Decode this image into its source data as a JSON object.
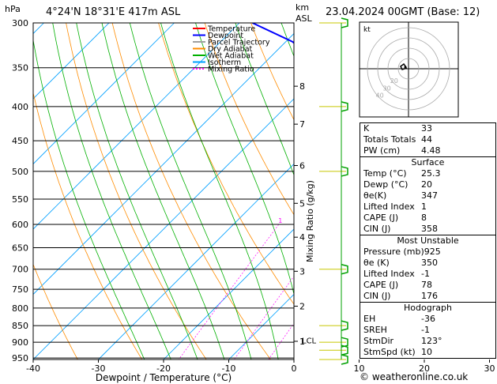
{
  "header": {
    "location": "4°24'N  18°31'E  417m  ASL",
    "datetime": "23.04.2024  00GMT  (Base: 12)",
    "hpa_label": "hPa",
    "km_label": "km",
    "asl_label": "ASL"
  },
  "legend": [
    "Temperature",
    "Dewpoint",
    "Parcel Trajectory",
    "Dry Adiabat",
    "Wet Adiabat",
    "Isotherm",
    "Mixing Ratio"
  ],
  "colors": {
    "temperature": "#ff0000",
    "dewpoint": "#0000ff",
    "parcel": "#a0a0a0",
    "dry_adiabat": "#ff8c00",
    "wet_adiabat": "#00b000",
    "isotherm": "#00a0ff",
    "mixing_ratio": "#ff00ff"
  },
  "chart_data": {
    "type": "line",
    "xlabel": "Dewpoint / Temperature (°C)",
    "ylabel_right": "Mixing Ratio (g/kg)",
    "x_ticks": [
      "-40",
      "-30",
      "-20",
      "-10",
      "0",
      "10",
      "20",
      "30"
    ],
    "pressure_levels": [
      "300",
      "350",
      "400",
      "450",
      "500",
      "550",
      "600",
      "650",
      "700",
      "750",
      "800",
      "850",
      "900",
      "950"
    ],
    "km_ticks": [
      {
        "km": "8",
        "p": 373
      },
      {
        "km": "7",
        "p": 425
      },
      {
        "km": "6",
        "p": 490
      },
      {
        "km": "5",
        "p": 558
      },
      {
        "km": "4",
        "p": 627
      },
      {
        "km": "3",
        "p": 705
      },
      {
        "km": "2",
        "p": 795
      },
      {
        "km": "1",
        "p": 897
      }
    ],
    "lcl_label": "LCL",
    "lcl_p": 893,
    "mixing_ratio_labels": [
      "1",
      "2",
      "3",
      "4",
      "6",
      "10",
      "16",
      "20",
      "25"
    ],
    "mixing_ratio_values": [
      1,
      2,
      3,
      4,
      6,
      10,
      16,
      20,
      25
    ],
    "series": [
      {
        "name": "Temperature",
        "points": [
          [
            955,
            25.3
          ],
          [
            940,
            23
          ],
          [
            925,
            22.3
          ],
          [
            900,
            21.2
          ],
          [
            850,
            19.5
          ],
          [
            800,
            16.5
          ],
          [
            750,
            13.5
          ],
          [
            700,
            10.7
          ],
          [
            650,
            7.3
          ],
          [
            600,
            4.2
          ],
          [
            550,
            1.2
          ],
          [
            500,
            -3.5
          ],
          [
            450,
            -9
          ],
          [
            400,
            -15.5
          ],
          [
            375,
            -19.8
          ],
          [
            357,
            -24.5
          ]
        ]
      },
      {
        "name": "Dewpoint",
        "points": [
          [
            955,
            20
          ],
          [
            925,
            19.5
          ],
          [
            900,
            18.8
          ],
          [
            850,
            16.8
          ],
          [
            800,
            14
          ],
          [
            750,
            11.5
          ],
          [
            700,
            7.5
          ],
          [
            650,
            3.5
          ],
          [
            600,
            -2.5
          ],
          [
            550,
            -6
          ],
          [
            500,
            -14
          ],
          [
            450,
            -22
          ],
          [
            400,
            -31
          ],
          [
            350,
            -40
          ],
          [
            320,
            -49
          ],
          [
            300,
            -58
          ]
        ]
      },
      {
        "name": "Parcel Trajectory",
        "points": [
          [
            955,
            25.3
          ],
          [
            925,
            23
          ],
          [
            893,
            20.5
          ],
          [
            850,
            19.2
          ],
          [
            800,
            17.5
          ],
          [
            750,
            15.3
          ],
          [
            700,
            12.8
          ],
          [
            650,
            10
          ],
          [
            600,
            6.7
          ],
          [
            550,
            3
          ],
          [
            500,
            -1.3
          ],
          [
            450,
            -6.3
          ],
          [
            400,
            -12.3
          ],
          [
            357,
            -18.3
          ]
        ]
      }
    ]
  },
  "hodograph": {
    "label": "kt",
    "ring_labels": [
      "20",
      "30",
      "40"
    ]
  },
  "wind_barbs": [
    {
      "p": 300
    },
    {
      "p": 400
    },
    {
      "p": 500
    },
    {
      "p": 700
    },
    {
      "p": 850
    },
    {
      "p": 900
    },
    {
      "p": 925
    },
    {
      "p": 955
    }
  ],
  "indices": {
    "main": [
      {
        "label": "K",
        "value": "33"
      },
      {
        "label": "Totals Totals",
        "value": "44"
      },
      {
        "label": "PW (cm)",
        "value": "4.48"
      }
    ],
    "surface": {
      "title": "Surface",
      "rows": [
        {
          "label": "Temp (°C)",
          "value": "25.3"
        },
        {
          "label": "Dewp (°C)",
          "value": "20"
        },
        {
          "label": "θe(K)",
          "value": "347"
        },
        {
          "label": "Lifted Index",
          "value": "1"
        },
        {
          "label": "CAPE (J)",
          "value": "8"
        },
        {
          "label": "CIN (J)",
          "value": "358"
        }
      ]
    },
    "most_unstable": {
      "title": "Most Unstable",
      "rows": [
        {
          "label": "Pressure (mb)",
          "value": "925"
        },
        {
          "label": "θe (K)",
          "value": "350"
        },
        {
          "label": "Lifted Index",
          "value": "-1"
        },
        {
          "label": "CAPE (J)",
          "value": "78"
        },
        {
          "label": "CIN (J)",
          "value": "176"
        }
      ]
    },
    "hodograph_box": {
      "title": "Hodograph",
      "rows": [
        {
          "label": "EH",
          "value": "-36"
        },
        {
          "label": "SREH",
          "value": "-1"
        },
        {
          "label": "StmDir",
          "value": "123°"
        },
        {
          "label": "StmSpd (kt)",
          "value": "10"
        }
      ]
    }
  },
  "copyright": "© weatheronline.co.uk"
}
